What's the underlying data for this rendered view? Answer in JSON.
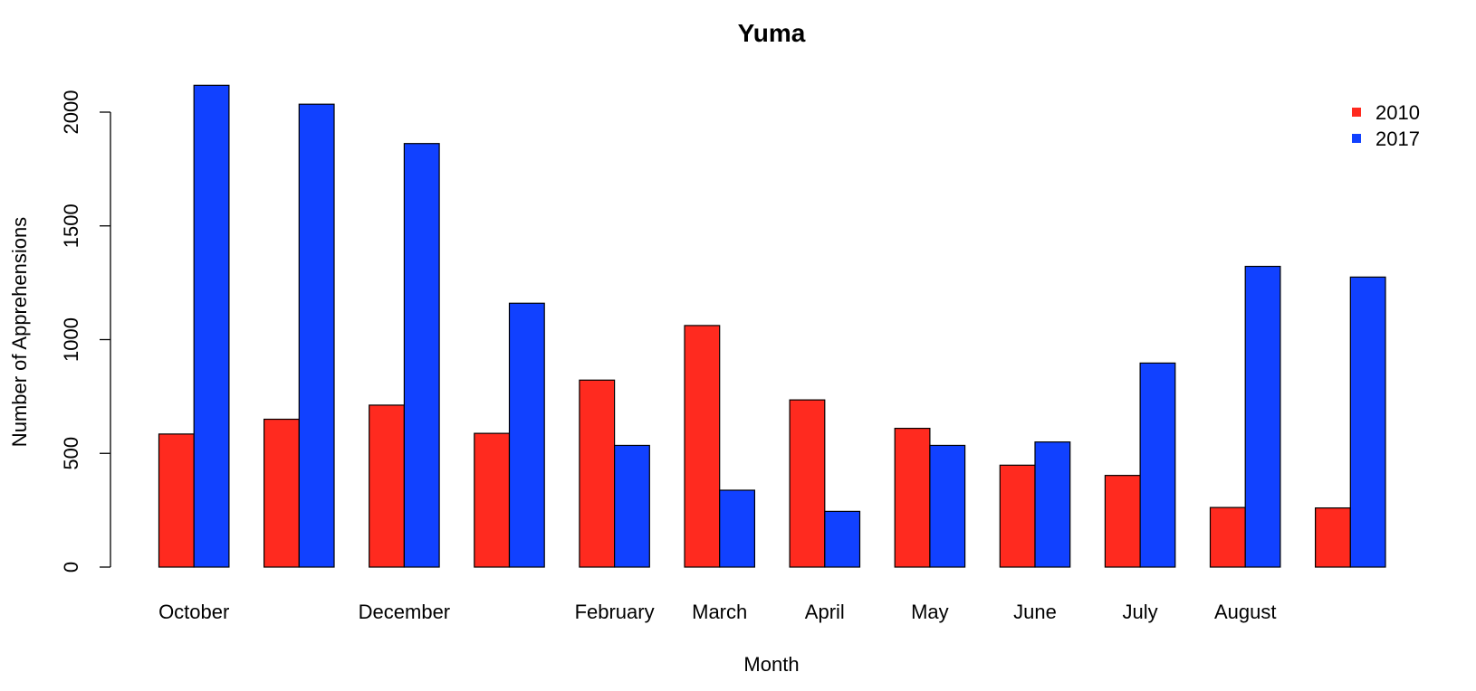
{
  "chart_data": {
    "type": "bar",
    "title": "Yuma",
    "xlabel": "Month",
    "ylabel": "Number of Apprehensions",
    "categories": [
      "October",
      "",
      "December",
      "",
      "February",
      "March",
      "April",
      "May",
      "June",
      "July",
      "August",
      ""
    ],
    "series": [
      {
        "name": "2010",
        "color": "#ff2a1f",
        "values": [
          585,
          650,
          712,
          588,
          822,
          1062,
          735,
          610,
          448,
          403,
          262,
          260
        ]
      },
      {
        "name": "2017",
        "color": "#1141ff",
        "values": [
          2118,
          2035,
          1862,
          1160,
          535,
          338,
          245,
          535,
          550,
          897,
          1322,
          1275
        ]
      }
    ],
    "ylim": [
      0,
      2000
    ],
    "yticks": [
      "0",
      "500",
      "1000",
      "1500",
      "2000"
    ],
    "legend_position": "top-right",
    "grid": false
  }
}
